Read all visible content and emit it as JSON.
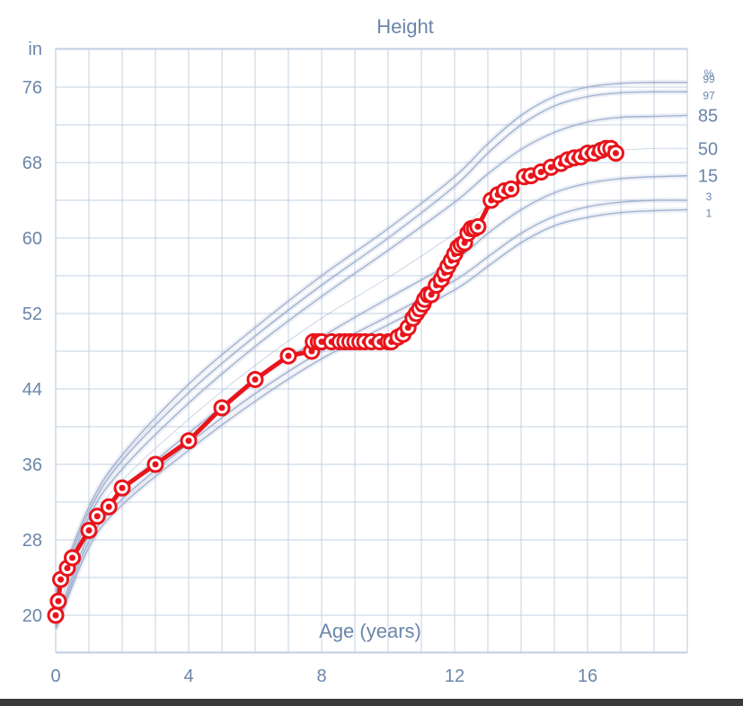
{
  "chart_data": {
    "type": "line",
    "title": "Height",
    "xlabel": "Age (years)",
    "ylabel": "in",
    "xlim": [
      0,
      19
    ],
    "ylim": [
      18,
      80
    ],
    "x_ticks": [
      0,
      4,
      8,
      12,
      16
    ],
    "y_ticks": [
      20,
      28,
      36,
      44,
      52,
      60,
      68,
      76
    ],
    "grid": true,
    "percentile_header": "%",
    "colors": {
      "grid": "#c3d0e2",
      "percentile": "#9aaccc",
      "series": "#e8141b",
      "text": "#6b86aa"
    },
    "percentiles": [
      {
        "name": "99",
        "x": [
          0,
          1,
          2,
          4,
          6,
          8,
          10,
          12,
          13,
          14,
          15,
          16,
          17,
          18,
          19
        ],
        "values": [
          22.5,
          31.5,
          37,
          44.5,
          50.5,
          56,
          61,
          66.5,
          70,
          73,
          75,
          76,
          76.4,
          76.5,
          76.5
        ]
      },
      {
        "name": "97",
        "x": [
          0,
          1,
          2,
          4,
          6,
          8,
          10,
          12,
          13,
          14,
          15,
          16,
          17,
          18,
          19
        ],
        "values": [
          22,
          31,
          36.4,
          43.6,
          49.6,
          55,
          60,
          65.5,
          69,
          72,
          74,
          75,
          75.4,
          75.5,
          75.5
        ]
      },
      {
        "name": "85",
        "x": [
          0,
          1,
          2,
          4,
          6,
          8,
          10,
          12,
          13,
          14,
          15,
          16,
          17,
          18,
          19
        ],
        "values": [
          21.3,
          30.4,
          35.5,
          42.5,
          48.5,
          53.8,
          58.7,
          63.8,
          66.8,
          69.4,
          71.2,
          72.3,
          72.8,
          72.9,
          73
        ]
      },
      {
        "name": "50",
        "x": [
          0,
          1,
          2,
          4,
          6,
          8,
          10,
          12,
          13,
          14,
          15,
          16,
          17,
          18,
          19
        ],
        "values": [
          20,
          29.5,
          34.3,
          40.8,
          46.5,
          51.5,
          55.8,
          60.5,
          63.5,
          66.2,
          68,
          69,
          69.3,
          69.5,
          69.5
        ]
      },
      {
        "name": "15",
        "x": [
          0,
          1,
          2,
          4,
          6,
          8,
          10,
          12,
          13,
          14,
          15,
          16,
          17,
          18,
          19
        ],
        "values": [
          19.2,
          28.5,
          33.2,
          39.3,
          44.8,
          49.5,
          53.6,
          57.6,
          60.5,
          63,
          64.8,
          65.8,
          66.3,
          66.5,
          66.6
        ]
      },
      {
        "name": "3",
        "x": [
          0,
          1,
          2,
          4,
          6,
          8,
          10,
          12,
          13,
          14,
          15,
          16,
          17,
          18,
          19
        ],
        "values": [
          18.8,
          27.8,
          32.3,
          38.2,
          43.5,
          48,
          51.7,
          55.5,
          58,
          60.5,
          62.3,
          63.3,
          63.8,
          64,
          64
        ]
      },
      {
        "name": "1",
        "x": [
          0,
          1,
          2,
          4,
          6,
          8,
          10,
          12,
          13,
          14,
          15,
          16,
          17,
          18,
          19
        ],
        "values": [
          18.5,
          27.2,
          31.7,
          37.5,
          42.7,
          47.2,
          50.8,
          54.5,
          57,
          59.5,
          61.3,
          62.2,
          62.7,
          62.9,
          63
        ]
      }
    ],
    "series": [
      {
        "x": [
          0,
          0.08,
          0.15,
          0.35,
          0.5,
          1.0,
          1.25,
          1.6,
          2.0,
          3.0,
          4.0,
          5.0,
          6.0,
          7.0,
          7.7,
          7.75,
          7.9,
          8.0,
          8.3,
          8.55,
          8.7,
          8.85,
          9.0,
          9.15,
          9.3,
          9.5,
          9.75,
          10.0,
          10.1,
          10.3,
          10.45,
          10.6,
          10.75,
          10.85,
          10.95,
          11.05,
          11.1,
          11.2,
          11.3,
          11.45,
          11.6,
          11.7,
          11.8,
          11.9,
          12.0,
          12.1,
          12.2,
          12.3,
          12.4,
          12.5,
          12.6,
          12.7,
          13.1,
          13.3,
          13.5,
          13.7,
          14.1,
          14.3,
          14.6,
          14.9,
          15.2,
          15.4,
          15.6,
          15.8,
          16.0,
          16.2,
          16.4,
          16.55,
          16.7,
          16.85
        ],
        "values": [
          20,
          21.5,
          23.8,
          25,
          26.1,
          29,
          30.5,
          31.5,
          33.5,
          36,
          38.5,
          42,
          45,
          47.5,
          48,
          49,
          49,
          49,
          49,
          49,
          49,
          49,
          49,
          49,
          49,
          49,
          49,
          49,
          49,
          49.5,
          49.8,
          50.5,
          51.5,
          52,
          52.5,
          53,
          53.5,
          54,
          54,
          55,
          55.6,
          56.3,
          57,
          57.6,
          58.3,
          59,
          59.3,
          59.5,
          60.5,
          61,
          61,
          61.2,
          64,
          64.6,
          65,
          65.2,
          66.5,
          66.6,
          67,
          67.5,
          67.9,
          68.3,
          68.5,
          68.6,
          69,
          69,
          69.3,
          69.5,
          69.5,
          69
        ]
      }
    ]
  }
}
